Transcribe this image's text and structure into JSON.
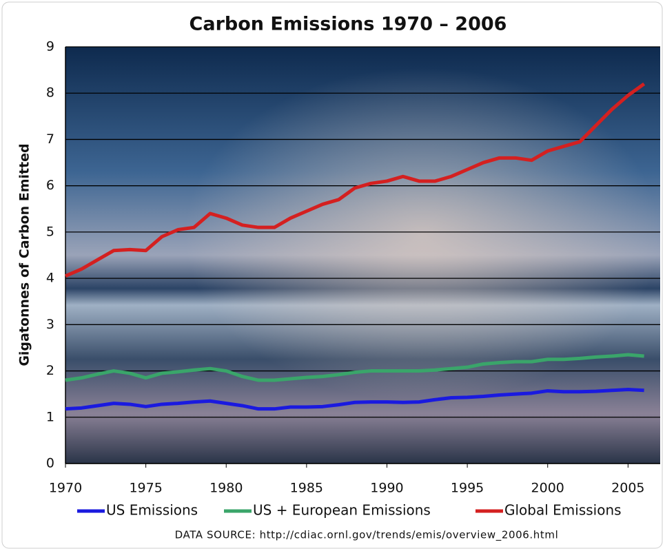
{
  "chart_data": {
    "type": "line",
    "title": "Carbon Emissions 1970 – 2006",
    "y_label": "Gigatonnes of Carbon Emitted",
    "source": "DATA SOURCE: http://cdiac.ornl.gov/trends/emis/overview_2006.html",
    "x": [
      1970,
      1971,
      1972,
      1973,
      1974,
      1975,
      1976,
      1977,
      1978,
      1979,
      1980,
      1981,
      1982,
      1983,
      1984,
      1985,
      1986,
      1987,
      1988,
      1989,
      1990,
      1991,
      1992,
      1993,
      1994,
      1995,
      1996,
      1997,
      1998,
      1999,
      2000,
      2001,
      2002,
      2003,
      2004,
      2005,
      2006
    ],
    "series": [
      {
        "name": "US Emissions",
        "color": "#1a1adf",
        "values": [
          1.18,
          1.2,
          1.25,
          1.3,
          1.28,
          1.23,
          1.28,
          1.3,
          1.33,
          1.35,
          1.3,
          1.25,
          1.18,
          1.18,
          1.22,
          1.22,
          1.23,
          1.27,
          1.32,
          1.33,
          1.33,
          1.32,
          1.33,
          1.38,
          1.42,
          1.43,
          1.45,
          1.48,
          1.5,
          1.52,
          1.57,
          1.55,
          1.55,
          1.56,
          1.58,
          1.6,
          1.58
        ]
      },
      {
        "name": "US + European Emissions",
        "color": "#3aa56a",
        "values": [
          1.8,
          1.85,
          1.93,
          2.0,
          1.95,
          1.85,
          1.95,
          1.98,
          2.02,
          2.05,
          2.0,
          1.88,
          1.8,
          1.8,
          1.83,
          1.86,
          1.88,
          1.92,
          1.97,
          2.0,
          2.0,
          2.0,
          2.0,
          2.02,
          2.05,
          2.08,
          2.15,
          2.18,
          2.2,
          2.2,
          2.25,
          2.25,
          2.27,
          2.3,
          2.32,
          2.35,
          2.32
        ]
      },
      {
        "name": "Global Emissions",
        "color": "#d42020",
        "values": [
          4.05,
          4.2,
          4.4,
          4.6,
          4.62,
          4.6,
          4.9,
          5.05,
          5.1,
          5.4,
          5.3,
          5.15,
          5.1,
          5.1,
          5.3,
          5.45,
          5.6,
          5.7,
          5.95,
          6.05,
          6.1,
          6.2,
          6.1,
          6.1,
          6.2,
          6.35,
          6.5,
          6.6,
          6.6,
          6.55,
          6.75,
          6.85,
          6.95,
          7.3,
          7.65,
          7.95,
          8.2
        ]
      }
    ],
    "xlim": [
      1970,
      2007
    ],
    "xticks": [
      1970,
      1975,
      1980,
      1985,
      1990,
      1995,
      2000,
      2005
    ],
    "ylim": [
      0,
      9
    ],
    "yticks": [
      0,
      1,
      2,
      3,
      4,
      5,
      6,
      7,
      8,
      9
    ],
    "grid": true,
    "legend": "bottom"
  }
}
